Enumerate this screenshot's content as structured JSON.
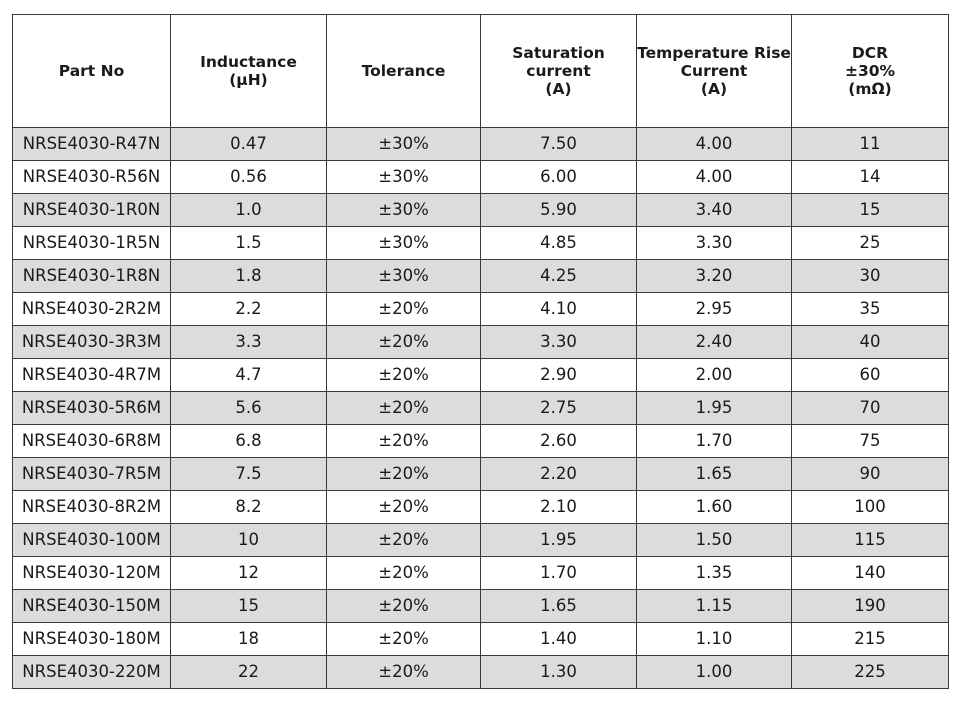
{
  "table": {
    "headers": [
      [
        "Part No"
      ],
      [
        "Inductance",
        "(µH)"
      ],
      [
        "Tolerance"
      ],
      [
        "Saturation",
        "current",
        "(A)"
      ],
      [
        "Temperature Rise",
        "Current",
        "(A)"
      ],
      [
        "DCR",
        "±30%",
        "(mΩ)"
      ]
    ],
    "rows": [
      [
        "NRSE4030-R47N",
        "0.47",
        "±30%",
        "7.50",
        "4.00",
        "11"
      ],
      [
        "NRSE4030-R56N",
        "0.56",
        "±30%",
        "6.00",
        "4.00",
        "14"
      ],
      [
        "NRSE4030-1R0N",
        "1.0",
        "±30%",
        "5.90",
        "3.40",
        "15"
      ],
      [
        "NRSE4030-1R5N",
        "1.5",
        "±30%",
        "4.85",
        "3.30",
        "25"
      ],
      [
        "NRSE4030-1R8N",
        "1.8",
        "±30%",
        "4.25",
        "3.20",
        "30"
      ],
      [
        "NRSE4030-2R2M",
        "2.2",
        "±20%",
        "4.10",
        "2.95",
        "35"
      ],
      [
        "NRSE4030-3R3M",
        "3.3",
        "±20%",
        "3.30",
        "2.40",
        "40"
      ],
      [
        "NRSE4030-4R7M",
        "4.7",
        "±20%",
        "2.90",
        "2.00",
        "60"
      ],
      [
        "NRSE4030-5R6M",
        "5.6",
        "±20%",
        "2.75",
        "1.95",
        "70"
      ],
      [
        "NRSE4030-6R8M",
        "6.8",
        "±20%",
        "2.60",
        "1.70",
        "75"
      ],
      [
        "NRSE4030-7R5M",
        "7.5",
        "±20%",
        "2.20",
        "1.65",
        "90"
      ],
      [
        "NRSE4030-8R2M",
        "8.2",
        "±20%",
        "2.10",
        "1.60",
        "100"
      ],
      [
        "NRSE4030-100M",
        "10",
        "±20%",
        "1.95",
        "1.50",
        "115"
      ],
      [
        "NRSE4030-120M",
        "12",
        "±20%",
        "1.70",
        "1.35",
        "140"
      ],
      [
        "NRSE4030-150M",
        "15",
        "±20%",
        "1.65",
        "1.15",
        "190"
      ],
      [
        "NRSE4030-180M",
        "18",
        "±20%",
        "1.40",
        "1.10",
        "215"
      ],
      [
        "NRSE4030-220M",
        "22",
        "±20%",
        "1.30",
        "1.00",
        "225"
      ]
    ]
  }
}
